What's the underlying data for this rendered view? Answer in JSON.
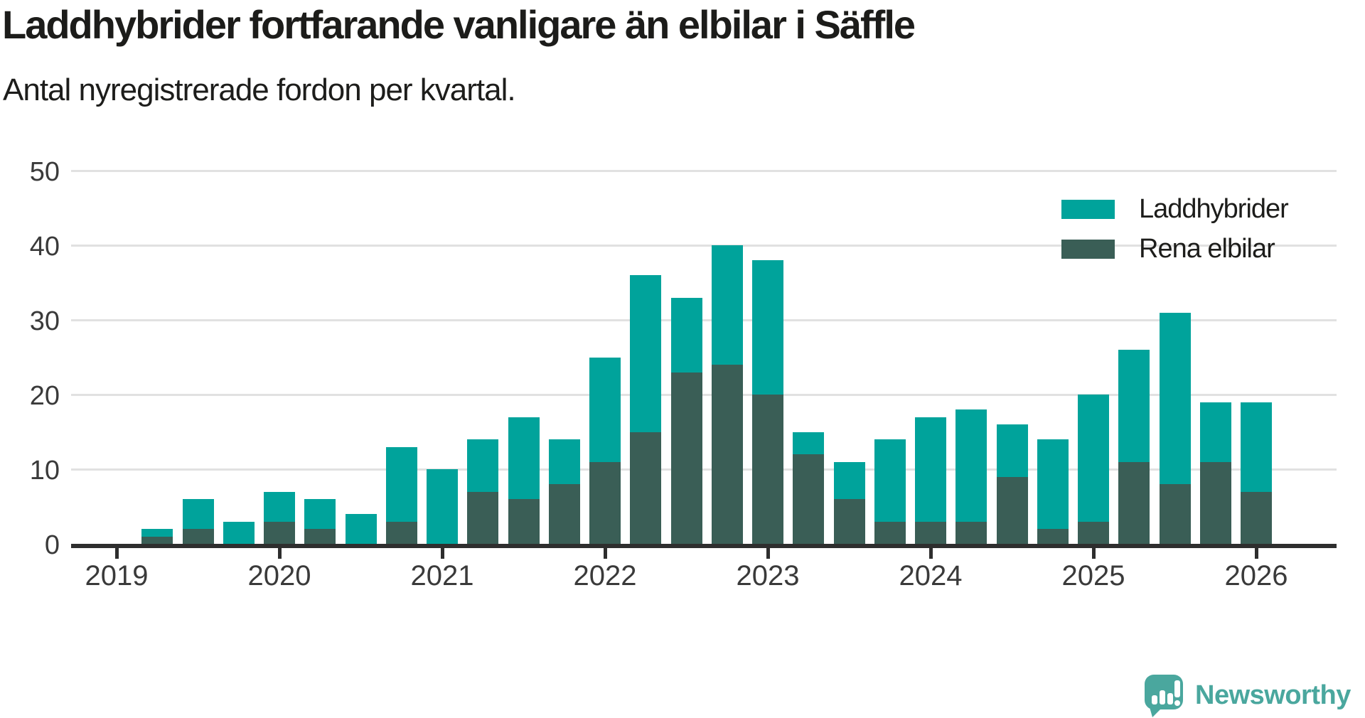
{
  "title": "Laddhybrider fortfarande vanligare än elbilar i Säffle",
  "subtitle": "Antal nyregistrerade fordon per kvartal.",
  "brand": {
    "name": "Newsworthy",
    "color": "#4aa79e"
  },
  "legend": {
    "items": [
      {
        "label": "Laddhybrider",
        "color": "#00a39b"
      },
      {
        "label": "Rena elbilar",
        "color": "#3a5e56"
      }
    ]
  },
  "chart_data": {
    "type": "bar",
    "stacked": true,
    "title": "Laddhybrider fortfarande vanligare än elbilar i Säffle",
    "subtitle": "Antal nyregistrerade fordon per kvartal.",
    "xlabel": "",
    "ylabel": "Antal nyregistrerade fordon per kvartal",
    "ylim": [
      0,
      50
    ],
    "grid": true,
    "legend_position": "top-right",
    "y_ticks": [
      0,
      10,
      20,
      30,
      40,
      50
    ],
    "x_year_labels": [
      "2019",
      "2020",
      "2021",
      "2022",
      "2023",
      "2024",
      "2025",
      "2026"
    ],
    "year_tick_indices": [
      0,
      4,
      8,
      12,
      16,
      20,
      24,
      28
    ],
    "categories": [
      "2019 Q1",
      "2019 Q2",
      "2019 Q3",
      "2019 Q4",
      "2020 Q1",
      "2020 Q2",
      "2020 Q3",
      "2020 Q4",
      "2021 Q1",
      "2021 Q2",
      "2021 Q3",
      "2021 Q4",
      "2022 Q1",
      "2022 Q2",
      "2022 Q3",
      "2022 Q4",
      "2023 Q1",
      "2023 Q2",
      "2023 Q3",
      "2023 Q4",
      "2024 Q1",
      "2024 Q2",
      "2024 Q3",
      "2024 Q4",
      "2025 Q1",
      "2025 Q2",
      "2025 Q3",
      "2025 Q4",
      "2026 Q1"
    ],
    "series": [
      {
        "name": "Laddhybrider",
        "color": "#00a39b",
        "values": [
          0,
          1,
          4,
          3,
          4,
          4,
          4,
          10,
          10,
          7,
          11,
          6,
          14,
          21,
          10,
          16,
          18,
          3,
          5,
          11,
          14,
          15,
          7,
          12,
          17,
          15,
          23,
          8,
          12
        ]
      },
      {
        "name": "Rena elbilar",
        "color": "#3a5e56",
        "values": [
          0,
          1,
          2,
          0,
          3,
          2,
          0,
          3,
          0,
          7,
          6,
          8,
          11,
          15,
          23,
          24,
          20,
          12,
          6,
          3,
          3,
          3,
          9,
          2,
          3,
          11,
          8,
          11,
          7
        ]
      }
    ],
    "totals": [
      0,
      2,
      6,
      3,
      7,
      6,
      4,
      13,
      10,
      14,
      17,
      14,
      25,
      36,
      33,
      40,
      38,
      15,
      11,
      14,
      17,
      18,
      16,
      14,
      20,
      26,
      31,
      19,
      19
    ]
  }
}
